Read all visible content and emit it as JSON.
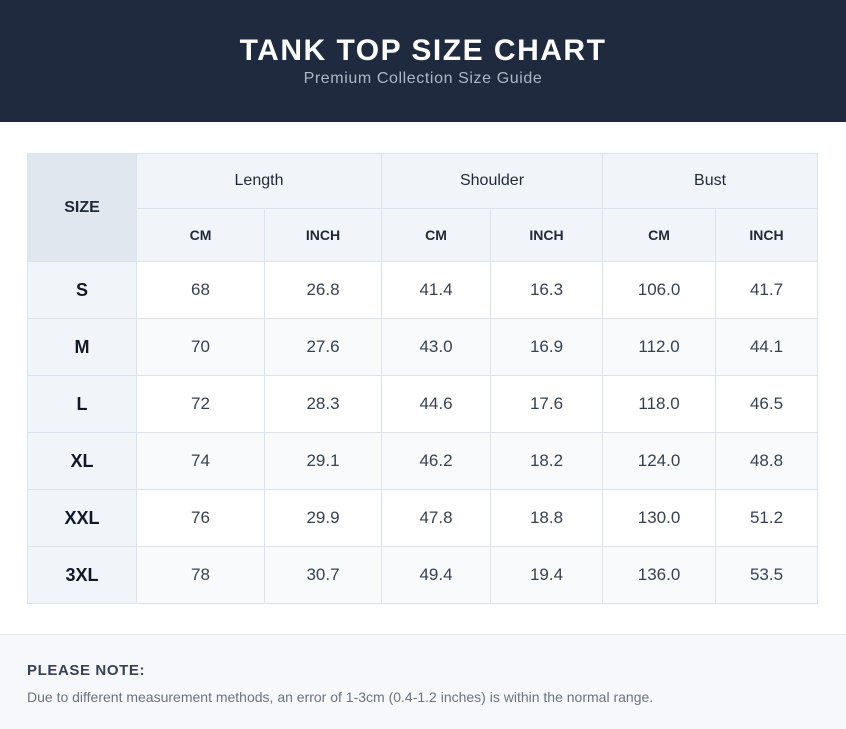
{
  "header": {
    "title": "TANK TOP SIZE CHART",
    "subtitle": "Premium Collection Size Guide"
  },
  "table": {
    "size_label": "SIZE",
    "groups": [
      "Length",
      "Shoulder",
      "Bust"
    ],
    "units": [
      "CM",
      "INCH",
      "CM",
      "INCH",
      "CM",
      "INCH"
    ],
    "rows": [
      {
        "size": "S",
        "values": [
          "68",
          "26.8",
          "41.4",
          "16.3",
          "106.0",
          "41.7"
        ]
      },
      {
        "size": "M",
        "values": [
          "70",
          "27.6",
          "43.0",
          "16.9",
          "112.0",
          "44.1"
        ]
      },
      {
        "size": "L",
        "values": [
          "72",
          "28.3",
          "44.6",
          "17.6",
          "118.0",
          "46.5"
        ]
      },
      {
        "size": "XL",
        "values": [
          "74",
          "29.1",
          "46.2",
          "18.2",
          "124.0",
          "48.8"
        ]
      },
      {
        "size": "XXL",
        "values": [
          "76",
          "29.9",
          "47.8",
          "18.8",
          "130.0",
          "51.2"
        ]
      },
      {
        "size": "3XL",
        "values": [
          "78",
          "30.7",
          "49.4",
          "19.4",
          "136.0",
          "53.5"
        ]
      }
    ]
  },
  "note": {
    "title": "PLEASE NOTE:",
    "text": "Due to different measurement methods, an error of 1-3cm (0.4-1.2 inches) is within the normal range."
  }
}
